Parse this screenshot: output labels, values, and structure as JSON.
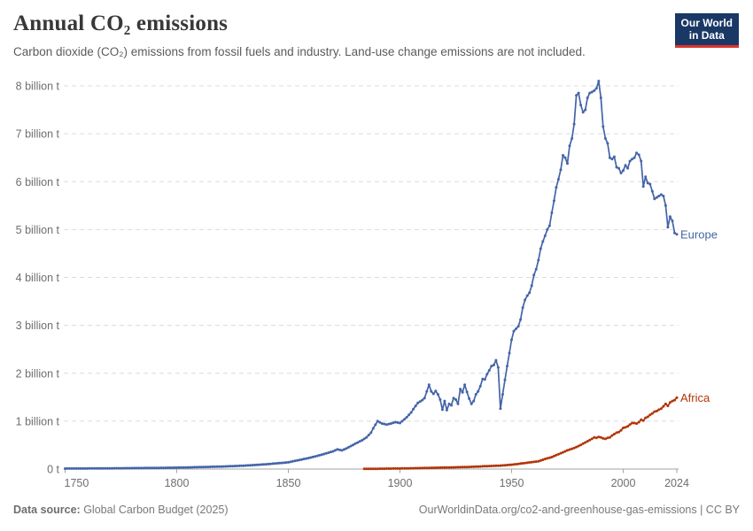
{
  "header": {
    "title": "Annual CO₂ emissions",
    "subtitle": "Carbon dioxide (CO₂) emissions from fossil fuels and industry. Land-use change emissions are not included."
  },
  "logo": {
    "line1": "Our World",
    "line2": "in Data",
    "bg_color": "#1a3866",
    "stripe_color": "#dc352b"
  },
  "footer": {
    "datasource_label": "Data source:",
    "datasource_value": " Global Carbon Budget (2025)",
    "link": "OurWorldinData.org/co2-and-greenhouse-gas-emissions | CC BY"
  },
  "chart_data": {
    "type": "line",
    "title": "Annual CO₂ emissions",
    "unit": "billion t",
    "xlim": [
      1750,
      2024
    ],
    "ylim": [
      0,
      8
    ],
    "grid": "horizontal-dashed",
    "legend_position": "end-of-line-labels",
    "x_ticks": [
      1750,
      1800,
      1850,
      1900,
      1950,
      2000,
      2024
    ],
    "y_ticks": [
      {
        "value": 0,
        "label": "0 t"
      },
      {
        "value": 1,
        "label": "1 billion t"
      },
      {
        "value": 2,
        "label": "2 billion t"
      },
      {
        "value": 3,
        "label": "3 billion t"
      },
      {
        "value": 4,
        "label": "4 billion t"
      },
      {
        "value": 5,
        "label": "5 billion t"
      },
      {
        "value": 6,
        "label": "6 billion t"
      },
      {
        "value": 7,
        "label": "7 billion t"
      },
      {
        "value": 8,
        "label": "8 billion t"
      }
    ],
    "series": [
      {
        "name": "Europe",
        "color": "#4464a8",
        "points": [
          [
            1750,
            0.01
          ],
          [
            1760,
            0.012
          ],
          [
            1770,
            0.015
          ],
          [
            1780,
            0.019
          ],
          [
            1790,
            0.023
          ],
          [
            1800,
            0.03
          ],
          [
            1810,
            0.04
          ],
          [
            1820,
            0.052
          ],
          [
            1830,
            0.07
          ],
          [
            1840,
            0.1
          ],
          [
            1845,
            0.12
          ],
          [
            1850,
            0.14
          ],
          [
            1855,
            0.19
          ],
          [
            1860,
            0.24
          ],
          [
            1865,
            0.3
          ],
          [
            1870,
            0.37
          ],
          [
            1872,
            0.41
          ],
          [
            1874,
            0.39
          ],
          [
            1876,
            0.43
          ],
          [
            1880,
            0.53
          ],
          [
            1883,
            0.6
          ],
          [
            1885,
            0.66
          ],
          [
            1887,
            0.76
          ],
          [
            1888,
            0.85
          ],
          [
            1890,
            1.0
          ],
          [
            1892,
            0.95
          ],
          [
            1894,
            0.93
          ],
          [
            1896,
            0.95
          ],
          [
            1898,
            0.98
          ],
          [
            1900,
            0.96
          ],
          [
            1901,
            1.0
          ],
          [
            1903,
            1.08
          ],
          [
            1905,
            1.18
          ],
          [
            1907,
            1.32
          ],
          [
            1908,
            1.38
          ],
          [
            1910,
            1.44
          ],
          [
            1911,
            1.48
          ],
          [
            1912,
            1.62
          ],
          [
            1913,
            1.76
          ],
          [
            1914,
            1.62
          ],
          [
            1915,
            1.57
          ],
          [
            1916,
            1.63
          ],
          [
            1917,
            1.56
          ],
          [
            1918,
            1.45
          ],
          [
            1919,
            1.24
          ],
          [
            1920,
            1.42
          ],
          [
            1921,
            1.23
          ],
          [
            1922,
            1.36
          ],
          [
            1923,
            1.33
          ],
          [
            1924,
            1.48
          ],
          [
            1925,
            1.45
          ],
          [
            1926,
            1.36
          ],
          [
            1927,
            1.67
          ],
          [
            1928,
            1.6
          ],
          [
            1929,
            1.76
          ],
          [
            1930,
            1.61
          ],
          [
            1931,
            1.47
          ],
          [
            1932,
            1.36
          ],
          [
            1933,
            1.42
          ],
          [
            1934,
            1.56
          ],
          [
            1935,
            1.62
          ],
          [
            1936,
            1.73
          ],
          [
            1937,
            1.88
          ],
          [
            1938,
            1.87
          ],
          [
            1939,
            1.98
          ],
          [
            1940,
            2.06
          ],
          [
            1941,
            2.15
          ],
          [
            1942,
            2.17
          ],
          [
            1943,
            2.27
          ],
          [
            1944,
            2.12
          ],
          [
            1945,
            1.26
          ],
          [
            1946,
            1.56
          ],
          [
            1947,
            1.86
          ],
          [
            1948,
            2.15
          ],
          [
            1949,
            2.42
          ],
          [
            1950,
            2.7
          ],
          [
            1951,
            2.88
          ],
          [
            1952,
            2.93
          ],
          [
            1953,
            2.98
          ],
          [
            1954,
            3.12
          ],
          [
            1955,
            3.37
          ],
          [
            1956,
            3.53
          ],
          [
            1957,
            3.62
          ],
          [
            1958,
            3.68
          ],
          [
            1959,
            3.83
          ],
          [
            1960,
            4.05
          ],
          [
            1961,
            4.17
          ],
          [
            1962,
            4.36
          ],
          [
            1963,
            4.6
          ],
          [
            1964,
            4.75
          ],
          [
            1965,
            4.87
          ],
          [
            1966,
            5.0
          ],
          [
            1967,
            5.08
          ],
          [
            1968,
            5.35
          ],
          [
            1969,
            5.6
          ],
          [
            1970,
            5.88
          ],
          [
            1971,
            6.05
          ],
          [
            1972,
            6.25
          ],
          [
            1973,
            6.55
          ],
          [
            1974,
            6.5
          ],
          [
            1975,
            6.38
          ],
          [
            1976,
            6.75
          ],
          [
            1977,
            6.9
          ],
          [
            1978,
            7.2
          ],
          [
            1979,
            7.8
          ],
          [
            1980,
            7.85
          ],
          [
            1981,
            7.6
          ],
          [
            1982,
            7.45
          ],
          [
            1983,
            7.5
          ],
          [
            1984,
            7.75
          ],
          [
            1985,
            7.85
          ],
          [
            1986,
            7.87
          ],
          [
            1987,
            7.9
          ],
          [
            1988,
            7.95
          ],
          [
            1989,
            8.1
          ],
          [
            1990,
            7.75
          ],
          [
            1991,
            7.15
          ],
          [
            1992,
            6.9
          ],
          [
            1993,
            6.8
          ],
          [
            1994,
            6.5
          ],
          [
            1995,
            6.47
          ],
          [
            1996,
            6.52
          ],
          [
            1997,
            6.3
          ],
          [
            1998,
            6.28
          ],
          [
            1999,
            6.18
          ],
          [
            2000,
            6.23
          ],
          [
            2001,
            6.34
          ],
          [
            2002,
            6.28
          ],
          [
            2003,
            6.43
          ],
          [
            2004,
            6.47
          ],
          [
            2005,
            6.5
          ],
          [
            2006,
            6.6
          ],
          [
            2007,
            6.56
          ],
          [
            2008,
            6.43
          ],
          [
            2009,
            5.9
          ],
          [
            2010,
            6.1
          ],
          [
            2011,
            5.97
          ],
          [
            2012,
            5.95
          ],
          [
            2013,
            5.8
          ],
          [
            2014,
            5.64
          ],
          [
            2015,
            5.67
          ],
          [
            2016,
            5.7
          ],
          [
            2017,
            5.73
          ],
          [
            2018,
            5.7
          ],
          [
            2019,
            5.5
          ],
          [
            2020,
            5.05
          ],
          [
            2021,
            5.27
          ],
          [
            2022,
            5.18
          ],
          [
            2023,
            4.93
          ],
          [
            2024,
            4.9
          ]
        ]
      },
      {
        "name": "Africa",
        "color": "#b13507",
        "points": [
          [
            1884,
            0.004
          ],
          [
            1890,
            0.006
          ],
          [
            1895,
            0.009
          ],
          [
            1900,
            0.012
          ],
          [
            1905,
            0.016
          ],
          [
            1910,
            0.021
          ],
          [
            1915,
            0.026
          ],
          [
            1920,
            0.032
          ],
          [
            1925,
            0.037
          ],
          [
            1930,
            0.042
          ],
          [
            1935,
            0.052
          ],
          [
            1940,
            0.063
          ],
          [
            1945,
            0.072
          ],
          [
            1950,
            0.09
          ],
          [
            1955,
            0.12
          ],
          [
            1960,
            0.15
          ],
          [
            1962,
            0.16
          ],
          [
            1965,
            0.21
          ],
          [
            1968,
            0.25
          ],
          [
            1970,
            0.29
          ],
          [
            1972,
            0.33
          ],
          [
            1975,
            0.39
          ],
          [
            1978,
            0.44
          ],
          [
            1980,
            0.48
          ],
          [
            1982,
            0.53
          ],
          [
            1984,
            0.58
          ],
          [
            1986,
            0.63
          ],
          [
            1987,
            0.66
          ],
          [
            1988,
            0.65
          ],
          [
            1989,
            0.67
          ],
          [
            1990,
            0.66
          ],
          [
            1991,
            0.64
          ],
          [
            1992,
            0.63
          ],
          [
            1993,
            0.65
          ],
          [
            1994,
            0.66
          ],
          [
            1995,
            0.7
          ],
          [
            1996,
            0.73
          ],
          [
            1997,
            0.76
          ],
          [
            1998,
            0.77
          ],
          [
            1999,
            0.81
          ],
          [
            2000,
            0.86
          ],
          [
            2001,
            0.87
          ],
          [
            2002,
            0.89
          ],
          [
            2003,
            0.93
          ],
          [
            2004,
            0.96
          ],
          [
            2005,
            0.96
          ],
          [
            2006,
            0.95
          ],
          [
            2007,
            0.98
          ],
          [
            2008,
            1.03
          ],
          [
            2009,
            1.01
          ],
          [
            2010,
            1.07
          ],
          [
            2011,
            1.09
          ],
          [
            2012,
            1.13
          ],
          [
            2013,
            1.16
          ],
          [
            2014,
            1.2
          ],
          [
            2015,
            1.21
          ],
          [
            2016,
            1.24
          ],
          [
            2017,
            1.26
          ],
          [
            2018,
            1.31
          ],
          [
            2019,
            1.36
          ],
          [
            2020,
            1.32
          ],
          [
            2021,
            1.39
          ],
          [
            2022,
            1.42
          ],
          [
            2023,
            1.44
          ],
          [
            2024,
            1.49
          ]
        ]
      }
    ],
    "style": {
      "grid_color": "#dcdcdc",
      "axis_color": "#a3a3a3",
      "tick_label_color": "#6e6e6e"
    }
  }
}
